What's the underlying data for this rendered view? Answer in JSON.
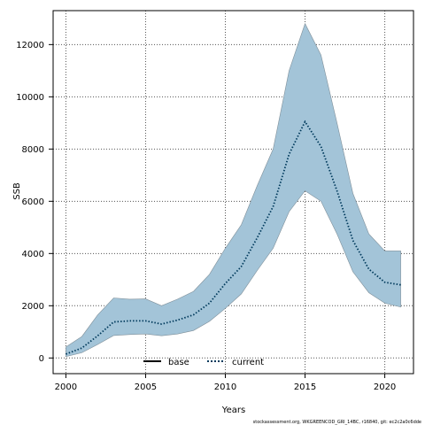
{
  "chart_data": {
    "type": "line",
    "title": "",
    "xlabel": "Years",
    "ylabel": "SSB",
    "xlim": [
      1999.2,
      2021.8
    ],
    "ylim": [
      -600,
      13300
    ],
    "x_ticks": [
      2000,
      2005,
      2010,
      2015,
      2020
    ],
    "y_ticks": [
      0,
      2000,
      4000,
      6000,
      8000,
      10000,
      12000
    ],
    "grid": true,
    "legend": {
      "placement": "bottom-center",
      "entries": [
        "base",
        "current"
      ]
    },
    "colors": {
      "band": "#a3c4d8",
      "band_edge": "#7f8f99",
      "current": "#003a5c",
      "base": "#000000"
    },
    "series": [
      {
        "name": "current",
        "x": [
          2000,
          2001,
          2002,
          2003,
          2004,
          2005,
          2006,
          2007,
          2008,
          2009,
          2010,
          2011,
          2012,
          2013,
          2014,
          2015,
          2016,
          2017,
          2018,
          2019,
          2020,
          2021
        ],
        "values": [
          150,
          380,
          850,
          1380,
          1420,
          1420,
          1300,
          1450,
          1650,
          2100,
          2850,
          3500,
          4600,
          5800,
          7800,
          9050,
          8100,
          6400,
          4500,
          3400,
          2900,
          2800
        ],
        "lower": [
          50,
          200,
          520,
          860,
          900,
          920,
          850,
          920,
          1050,
          1400,
          1900,
          2450,
          3350,
          4200,
          5600,
          6400,
          6000,
          4750,
          3300,
          2500,
          2100,
          1950
        ],
        "upper": [
          420,
          820,
          1650,
          2300,
          2250,
          2260,
          2000,
          2250,
          2550,
          3200,
          4200,
          5100,
          6600,
          8000,
          11000,
          12800,
          11600,
          9000,
          6300,
          4750,
          4100,
          4100
        ]
      },
      {
        "name": "base",
        "x": [],
        "values": []
      }
    ],
    "footer_text": "stockassessment.org, WKGREENCOD_GRI_14BC, r16840, git: ec2c2a0c6dde"
  }
}
